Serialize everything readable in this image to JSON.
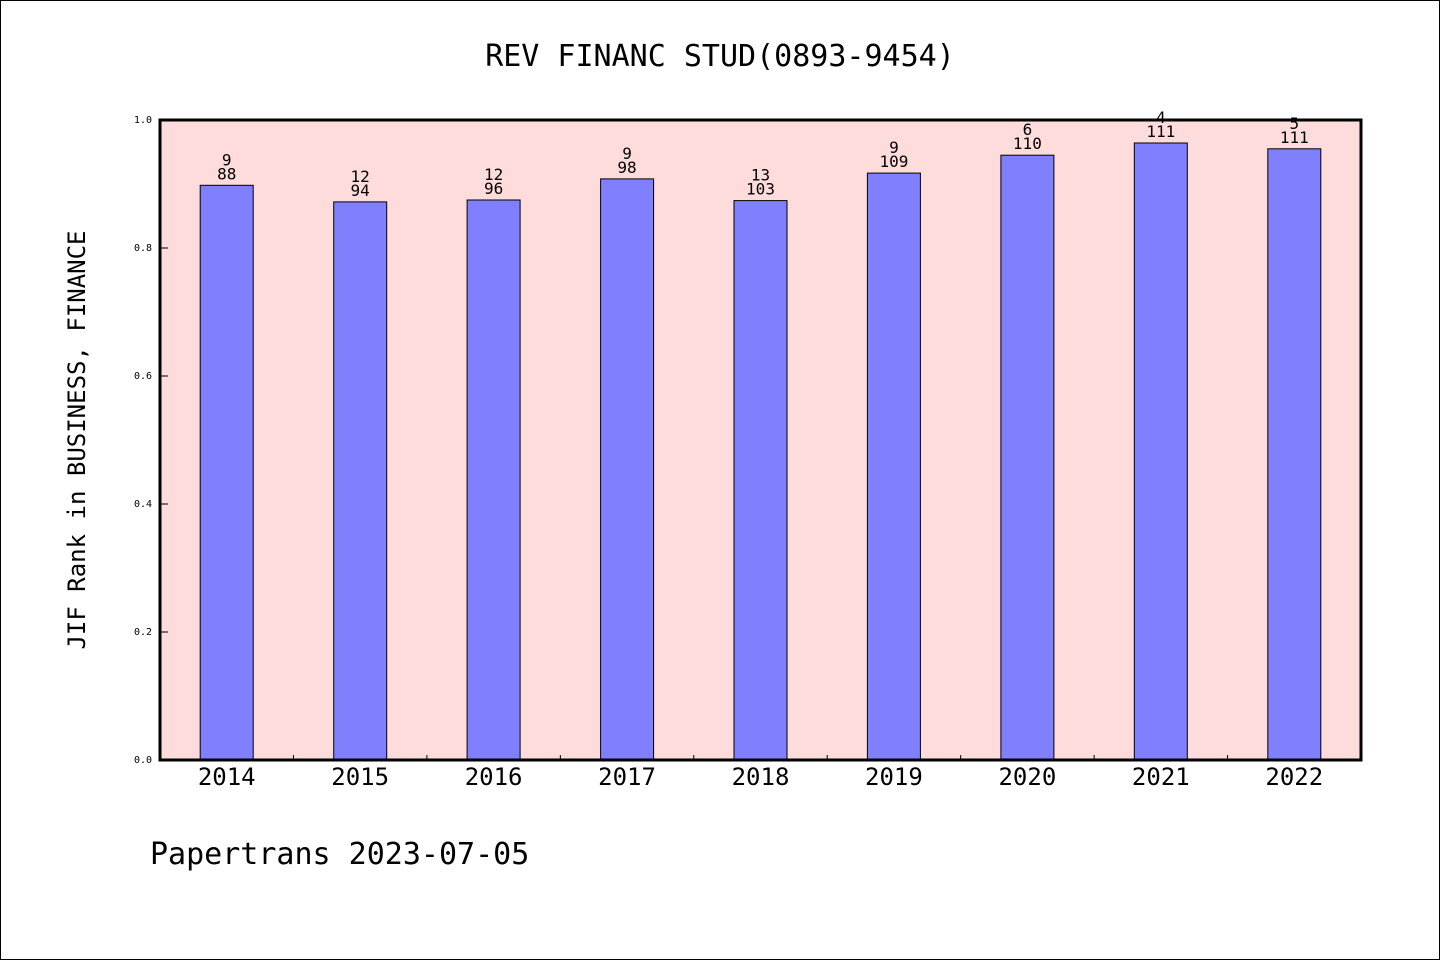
{
  "chart_data": {
    "type": "bar",
    "title": "REV FINANC STUD(0893-9454)",
    "ylabel": "JIF Rank in BUSINESS, FINANCE",
    "xlabel": "",
    "ylim": [
      0.0,
      1.0
    ],
    "yticks": [
      "0.0",
      "0.2",
      "0.4",
      "0.6",
      "0.8",
      "1.0"
    ],
    "categories": [
      "2014",
      "2015",
      "2016",
      "2017",
      "2018",
      "2019",
      "2020",
      "2021",
      "2022"
    ],
    "values": [
      0.898,
      0.872,
      0.875,
      0.908,
      0.874,
      0.917,
      0.945,
      0.964,
      0.955
    ],
    "ranks": [
      "9",
      "12",
      "12",
      "9",
      "13",
      "9",
      "6",
      "4",
      "5"
    ],
    "totals": [
      "88",
      "94",
      "96",
      "98",
      "103",
      "109",
      "110",
      "111",
      "111"
    ],
    "grid": false,
    "colors": {
      "plot_background": "#ffdcdc",
      "bar_fill": "#8080ff",
      "bar_stroke": "#000000"
    }
  },
  "footer": "Papertrans 2023-07-05"
}
